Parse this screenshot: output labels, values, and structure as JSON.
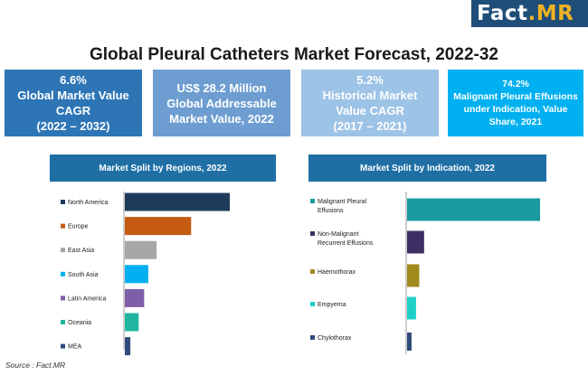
{
  "brand": {
    "name_main": "Fact",
    "name_accent": ".MR"
  },
  "title": "Global Pleural Catheters Market Forecast, 2022-32",
  "kpis": [
    {
      "lines": [
        "6.6%",
        "Global Market Value",
        "CAGR",
        "(2022 – 2032)"
      ],
      "color": "#2e75b6"
    },
    {
      "lines": [
        "US$ 28.2 Million",
        "Global Addressable",
        "Market Value, 2022"
      ],
      "color": "#6d9dd1"
    },
    {
      "lines": [
        "5.2%",
        "Historical Market",
        "Value CAGR",
        "(2017 – 2021)"
      ],
      "color": "#9dc3e6"
    },
    {
      "lines": [
        "74.2%",
        "Malignant Pleural Effusions",
        "under Indication, Value",
        "Share, 2021"
      ],
      "color": "#00b0f0"
    }
  ],
  "source": "Source : Fact.MR",
  "chart_data": [
    {
      "type": "bar",
      "orientation": "horizontal",
      "title": "Market Split by Regions, 2022",
      "categories": [
        "North America",
        "Europe",
        "East Asia",
        "South Asia",
        "Latin America",
        "Oceania",
        "MEA"
      ],
      "values": [
        38.0,
        24.0,
        11.5,
        8.5,
        7.0,
        5.0,
        2.0
      ],
      "colors": [
        "#1f3b5c",
        "#c55a11",
        "#a6a6a6",
        "#00b0f0",
        "#7e5ea8",
        "#1fb5a0",
        "#2f4b7c"
      ],
      "grid": false,
      "legend": "none"
    },
    {
      "type": "bar",
      "orientation": "horizontal",
      "title": "Market Split by Indication, 2022",
      "categories": [
        "Malignant Pleural Effusions",
        "Non-Malignant Recurrent Effusions",
        "Haemothorax",
        "Empyema",
        "Chylothorax"
      ],
      "label_lines": [
        [
          "Malignant Pleural",
          "Effusions"
        ],
        [
          "Non-Malignant",
          "Recurrent Effusions"
        ],
        [
          "Haemothorax"
        ],
        [
          "Empyema"
        ],
        [
          "Chylothorax"
        ]
      ],
      "values": [
        74.2,
        9.5,
        6.8,
        5.0,
        2.5
      ],
      "colors": [
        "#1a9ba0",
        "#3b2f63",
        "#a08a1c",
        "#1fd0c8",
        "#2f4b7c"
      ],
      "grid": false,
      "legend": "none"
    }
  ]
}
